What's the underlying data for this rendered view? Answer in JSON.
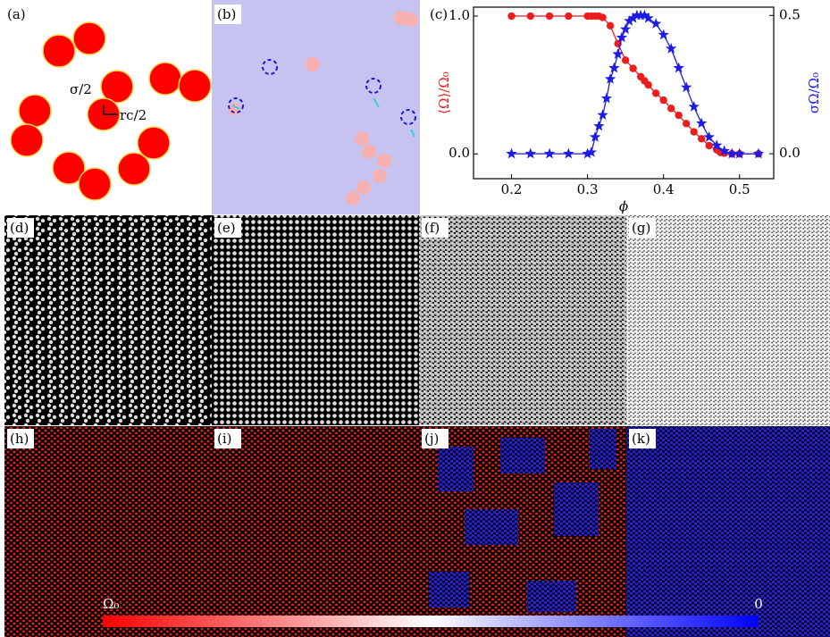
{
  "panel_labels": [
    "(a)",
    "(b)",
    "(c)",
    "(d)",
    "(e)",
    "(f)",
    "(g)",
    "(h)",
    "(i)",
    "(j)",
    "(k)"
  ],
  "sketch": {
    "sigma_label": "σ/2",
    "rc_label": "rc/2"
  },
  "colorbar": {
    "labels": [
      "Ω₀",
      "0"
    ]
  },
  "chart_data": {
    "type": "line",
    "xlabel": "ϕ",
    "ylabel": "⟨Ω⟩/Ω₀",
    "y2label": "σΩ/Ω₀",
    "xlim": [
      0.15,
      0.545
    ],
    "xticks": [
      0.2,
      0.3,
      0.4,
      0.5
    ],
    "ylim": [
      -0.18,
      1.065
    ],
    "yticks": [
      {
        "value": 0,
        "label": "0.0"
      },
      {
        "value": 1,
        "label": "1.0"
      }
    ],
    "y2lim": [
      -0.09,
      0.53
    ],
    "y2ticks": [
      {
        "value": 0,
        "label": "0.0"
      },
      0.5
    ],
    "series": [
      {
        "color": "#ee1c1c",
        "marker": "circle",
        "x": [
          0.2,
          0.225,
          0.25,
          0.275,
          0.3,
          0.305,
          0.31,
          0.315,
          0.32,
          0.33,
          0.34,
          0.35,
          0.36,
          0.37,
          0.375,
          0.38,
          0.39,
          0.4,
          0.41,
          0.42,
          0.43,
          0.44,
          0.45,
          0.46,
          0.47,
          0.475,
          0.48,
          0.49,
          0.5,
          0.525
        ],
        "values": [
          1,
          1,
          1,
          1,
          1,
          1,
          1,
          1,
          0.99,
          0.93,
          0.8,
          0.68,
          0.62,
          0.56,
          0.53,
          0.5,
          0.44,
          0.39,
          0.33,
          0.28,
          0.22,
          0.16,
          0.11,
          0.06,
          0.03,
          0.01,
          0.005,
          0,
          0,
          0
        ]
      },
      {
        "color": "#1c1ce6",
        "marker": "star",
        "axis": "y2",
        "x": [
          0.2,
          0.225,
          0.25,
          0.275,
          0.3,
          0.305,
          0.31,
          0.315,
          0.32,
          0.325,
          0.33,
          0.335,
          0.34,
          0.345,
          0.35,
          0.355,
          0.36,
          0.365,
          0.37,
          0.375,
          0.38,
          0.39,
          0.4,
          0.41,
          0.42,
          0.43,
          0.44,
          0.45,
          0.46,
          0.47,
          0.48,
          0.49,
          0.5,
          0.525
        ],
        "values": [
          0,
          0,
          0,
          0,
          0,
          0.005,
          0.06,
          0.1,
          0.14,
          0.2,
          0.27,
          0.31,
          0.36,
          0.42,
          0.45,
          0.48,
          0.49,
          0.5,
          0.5,
          0.5,
          0.49,
          0.47,
          0.43,
          0.38,
          0.31,
          0.24,
          0.17,
          0.11,
          0.06,
          0.03,
          0.01,
          0,
          0,
          0
        ]
      }
    ]
  }
}
